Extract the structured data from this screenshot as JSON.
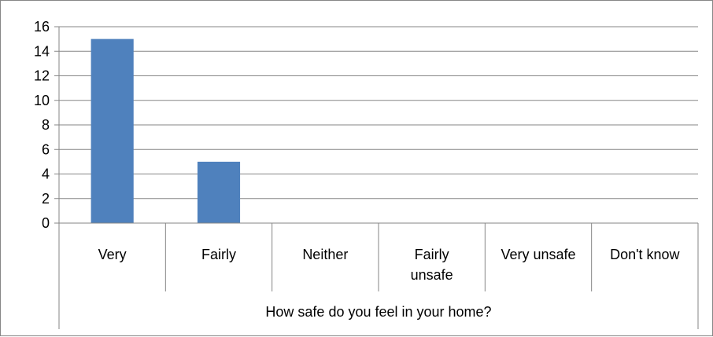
{
  "chart_data": {
    "type": "bar",
    "categories": [
      [
        "Very"
      ],
      [
        "Fairly"
      ],
      [
        "Neither"
      ],
      [
        "Fairly",
        "unsafe"
      ],
      [
        "Very unsafe"
      ],
      [
        "Don't know"
      ]
    ],
    "values": [
      15,
      5,
      0,
      0,
      0,
      0
    ],
    "xlabel": "How safe do you feel in your home?",
    "ylim": [
      0,
      16
    ],
    "yticks": [
      0,
      2,
      4,
      6,
      8,
      10,
      12,
      14,
      16
    ],
    "grid": true,
    "legend": "none",
    "bar_color": "#4F81BD",
    "grid_color": "#868686"
  }
}
